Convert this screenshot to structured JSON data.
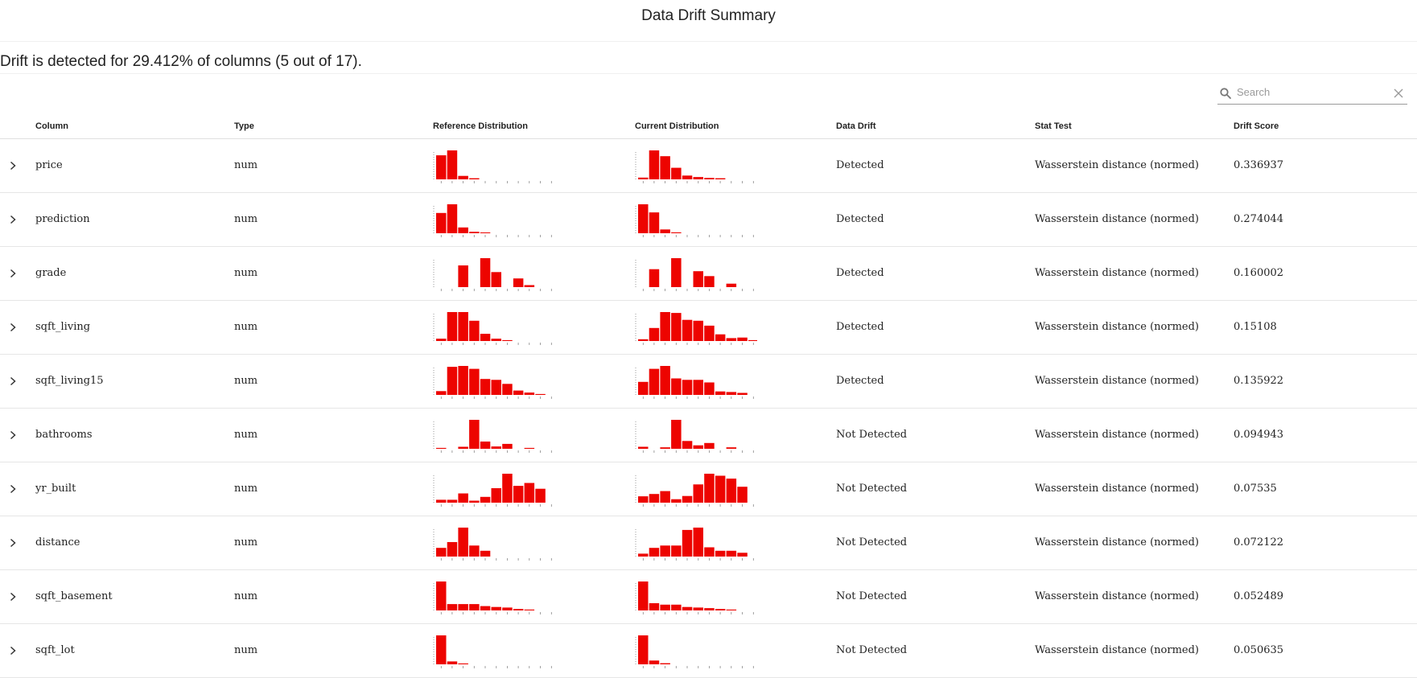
{
  "title": "Data Drift Summary",
  "summary": "Drift is detected for 29.412% of columns (5 out of 17).",
  "search": {
    "placeholder": "Search"
  },
  "columns": {
    "column": "Column",
    "type": "Type",
    "reference": "Reference Distribution",
    "current": "Current Distribution",
    "drift": "Data Drift",
    "stat_test": "Stat Test",
    "score": "Drift Score"
  },
  "colors": {
    "bar": "#ed0400",
    "text": "#222222"
  },
  "rows": [
    {
      "column": "price",
      "type": "num",
      "drift": "Detected",
      "stat_test": "Wasserstein distance (normed)",
      "score": "0.336937",
      "ref": [
        0.83,
        1.0,
        0.12,
        0.04,
        0,
        0,
        0,
        0,
        0,
        0,
        0
      ],
      "cur": [
        0.06,
        1.0,
        0.8,
        0.4,
        0.13,
        0.08,
        0.05,
        0.04,
        0,
        0,
        0
      ]
    },
    {
      "column": "prediction",
      "type": "num",
      "drift": "Detected",
      "stat_test": "Wasserstein distance (normed)",
      "score": "0.274044",
      "ref": [
        0.7,
        1.0,
        0.2,
        0.05,
        0.02,
        0,
        0,
        0,
        0,
        0,
        0
      ],
      "cur": [
        1.0,
        0.72,
        0.13,
        0.03,
        0,
        0,
        0,
        0,
        0,
        0,
        0
      ]
    },
    {
      "column": "grade",
      "type": "num",
      "drift": "Detected",
      "stat_test": "Wasserstein distance (normed)",
      "score": "0.160002",
      "ref": [
        0,
        0,
        0.75,
        0,
        1.0,
        0.52,
        0,
        0.3,
        0.07,
        0,
        0
      ],
      "cur": [
        0,
        0.62,
        0,
        1.0,
        0,
        0.55,
        0.38,
        0,
        0.12,
        0,
        0
      ]
    },
    {
      "column": "sqft_living",
      "type": "num",
      "drift": "Detected",
      "stat_test": "Wasserstein distance (normed)",
      "score": "0.15108",
      "ref": [
        0.08,
        1.0,
        1.0,
        0.7,
        0.25,
        0.08,
        0.03,
        0,
        0,
        0,
        0
      ],
      "cur": [
        0.06,
        0.45,
        1.0,
        0.97,
        0.73,
        0.7,
        0.53,
        0.23,
        0.1,
        0.12,
        0.03
      ]
    },
    {
      "column": "sqft_living15",
      "type": "num",
      "drift": "Detected",
      "stat_test": "Wasserstein distance (normed)",
      "score": "0.135922",
      "ref": [
        0.13,
        0.97,
        1.0,
        0.9,
        0.55,
        0.52,
        0.38,
        0.15,
        0.08,
        0.03,
        0
      ],
      "cur": [
        0.45,
        0.9,
        1.0,
        0.57,
        0.52,
        0.52,
        0.43,
        0.12,
        0.1,
        0.07,
        0
      ]
    },
    {
      "column": "bathrooms",
      "type": "num",
      "drift": "Not Detected",
      "stat_test": "Wasserstein distance (normed)",
      "score": "0.094943",
      "ref": [
        0.03,
        0,
        0.07,
        1.0,
        0.25,
        0.08,
        0.17,
        0,
        0.03,
        0,
        0
      ],
      "cur": [
        0.07,
        0,
        0.05,
        1.0,
        0.27,
        0.12,
        0.2,
        0,
        0.05,
        0,
        0
      ]
    },
    {
      "column": "yr_built",
      "type": "num",
      "drift": "Not Detected",
      "stat_test": "Wasserstein distance (normed)",
      "score": "0.07535",
      "ref": [
        0.1,
        0.1,
        0.32,
        0.07,
        0.2,
        0.5,
        1.0,
        0.58,
        0.68,
        0.48,
        0
      ],
      "cur": [
        0.22,
        0.3,
        0.4,
        0.12,
        0.23,
        0.63,
        1.0,
        0.93,
        0.83,
        0.55,
        0
      ]
    },
    {
      "column": "distance",
      "type": "num",
      "drift": "Not Detected",
      "stat_test": "Wasserstein distance (normed)",
      "score": "0.072122",
      "ref": [
        0.3,
        0.5,
        1.0,
        0.38,
        0.2,
        0,
        0,
        0,
        0,
        0,
        0
      ],
      "cur": [
        0.1,
        0.3,
        0.38,
        0.38,
        0.92,
        1.0,
        0.32,
        0.2,
        0.2,
        0.13,
        0
      ]
    },
    {
      "column": "sqft_basement",
      "type": "num",
      "drift": "Not Detected",
      "stat_test": "Wasserstein distance (normed)",
      "score": "0.052489",
      "ref": [
        1.0,
        0.22,
        0.22,
        0.22,
        0.15,
        0.12,
        0.1,
        0.05,
        0.03,
        0,
        0
      ],
      "cur": [
        1.0,
        0.25,
        0.2,
        0.2,
        0.12,
        0.1,
        0.08,
        0.05,
        0.03,
        0,
        0
      ]
    },
    {
      "column": "sqft_lot",
      "type": "num",
      "drift": "Not Detected",
      "stat_test": "Wasserstein distance (normed)",
      "score": "0.050635",
      "ref": [
        1.0,
        0.1,
        0.03,
        0,
        0,
        0,
        0,
        0,
        0,
        0,
        0
      ],
      "cur": [
        1.0,
        0.13,
        0.04,
        0,
        0,
        0,
        0,
        0,
        0,
        0,
        0
      ]
    }
  ]
}
